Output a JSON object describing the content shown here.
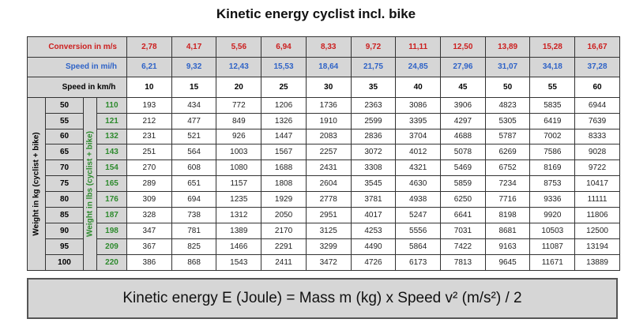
{
  "title": "Kinetic energy cyclist incl. bike",
  "headers": {
    "conversion_label": "Conversion in m/s",
    "conversion_values": [
      "2,78",
      "4,17",
      "5,56",
      "6,94",
      "8,33",
      "9,72",
      "11,11",
      "12,50",
      "13,89",
      "15,28",
      "16,67"
    ],
    "mph_label": "Speed in mi/h",
    "mph_values": [
      "6,21",
      "9,32",
      "12,43",
      "15,53",
      "18,64",
      "21,75",
      "24,85",
      "27,96",
      "31,07",
      "34,18",
      "37,28"
    ],
    "kmh_label": "Speed in km/h",
    "kmh_values": [
      "10",
      "15",
      "20",
      "25",
      "30",
      "35",
      "40",
      "45",
      "50",
      "55",
      "60"
    ]
  },
  "side_labels": {
    "kg": "Weight in kg (cyclist + bike)",
    "lbs": "Weight in lbs (cyclist + bike)"
  },
  "rows": [
    {
      "kg": "50",
      "lbs": "110",
      "values": [
        "193",
        "434",
        "772",
        "1206",
        "1736",
        "2363",
        "3086",
        "3906",
        "4823",
        "5835",
        "6944"
      ]
    },
    {
      "kg": "55",
      "lbs": "121",
      "values": [
        "212",
        "477",
        "849",
        "1326",
        "1910",
        "2599",
        "3395",
        "4297",
        "5305",
        "6419",
        "7639"
      ]
    },
    {
      "kg": "60",
      "lbs": "132",
      "values": [
        "231",
        "521",
        "926",
        "1447",
        "2083",
        "2836",
        "3704",
        "4688",
        "5787",
        "7002",
        "8333"
      ]
    },
    {
      "kg": "65",
      "lbs": "143",
      "values": [
        "251",
        "564",
        "1003",
        "1567",
        "2257",
        "3072",
        "4012",
        "5078",
        "6269",
        "7586",
        "9028"
      ]
    },
    {
      "kg": "70",
      "lbs": "154",
      "values": [
        "270",
        "608",
        "1080",
        "1688",
        "2431",
        "3308",
        "4321",
        "5469",
        "6752",
        "8169",
        "9722"
      ]
    },
    {
      "kg": "75",
      "lbs": "165",
      "values": [
        "289",
        "651",
        "1157",
        "1808",
        "2604",
        "3545",
        "4630",
        "5859",
        "7234",
        "8753",
        "10417"
      ]
    },
    {
      "kg": "80",
      "lbs": "176",
      "values": [
        "309",
        "694",
        "1235",
        "1929",
        "2778",
        "3781",
        "4938",
        "6250",
        "7716",
        "9336",
        "11111"
      ]
    },
    {
      "kg": "85",
      "lbs": "187",
      "values": [
        "328",
        "738",
        "1312",
        "2050",
        "2951",
        "4017",
        "5247",
        "6641",
        "8198",
        "9920",
        "11806"
      ]
    },
    {
      "kg": "90",
      "lbs": "198",
      "values": [
        "347",
        "781",
        "1389",
        "2170",
        "3125",
        "4253",
        "5556",
        "7031",
        "8681",
        "10503",
        "12500"
      ]
    },
    {
      "kg": "95",
      "lbs": "209",
      "values": [
        "367",
        "825",
        "1466",
        "2291",
        "3299",
        "4490",
        "5864",
        "7422",
        "9163",
        "11087",
        "13194"
      ]
    },
    {
      "kg": "100",
      "lbs": "220",
      "values": [
        "386",
        "868",
        "1543",
        "2411",
        "3472",
        "4726",
        "6173",
        "7813",
        "9645",
        "11671",
        "13889"
      ]
    }
  ],
  "formula": "Kinetic energy E (Joule) = Mass m (kg) x Speed v² (m/s²) / 2"
}
